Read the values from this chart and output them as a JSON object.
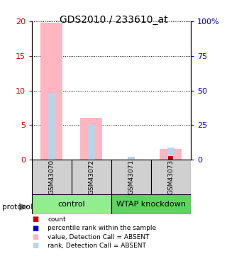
{
  "title": "GDS2010 / 233610_at",
  "samples": [
    "GSM43070",
    "GSM43072",
    "GSM43071",
    "GSM43073"
  ],
  "groups": [
    {
      "name": "control",
      "color": "#90ee90",
      "indices": [
        0,
        1
      ]
    },
    {
      "name": "WTAP knockdown",
      "color": "#5cd65c",
      "indices": [
        2,
        3
      ]
    }
  ],
  "pink_bars": [
    19.8,
    6.1,
    0.0,
    1.5
  ],
  "blue_bars_pct": [
    48.0,
    25.0,
    2.0,
    8.5
  ],
  "red_bar_pct": [
    0.0,
    0.0,
    0.0,
    0.5
  ],
  "ylim_left": [
    0,
    20
  ],
  "ylim_right": [
    0,
    100
  ],
  "yticks_left": [
    0,
    5,
    10,
    15,
    20
  ],
  "yticks_right": [
    0,
    25,
    50,
    75,
    100
  ],
  "ytick_labels_right": [
    "0",
    "25",
    "50",
    "75",
    "100%"
  ],
  "left_tick_color": "#cc0000",
  "right_tick_color": "#0000cc",
  "legend_items": [
    {
      "color": "#cc0000",
      "label": "count"
    },
    {
      "color": "#0000cc",
      "label": "percentile rank within the sample"
    },
    {
      "color": "#ffb6c1",
      "label": "value, Detection Call = ABSENT"
    },
    {
      "color": "#b8d4e8",
      "label": "rank, Detection Call = ABSENT"
    }
  ],
  "protocol_label": "protocol",
  "pink_bar_width": 0.55,
  "blue_bar_width": 0.18,
  "red_bar_width": 0.12,
  "sample_label_fontsize": 6.5,
  "group_label_fontsize": 8,
  "title_fontsize": 10
}
